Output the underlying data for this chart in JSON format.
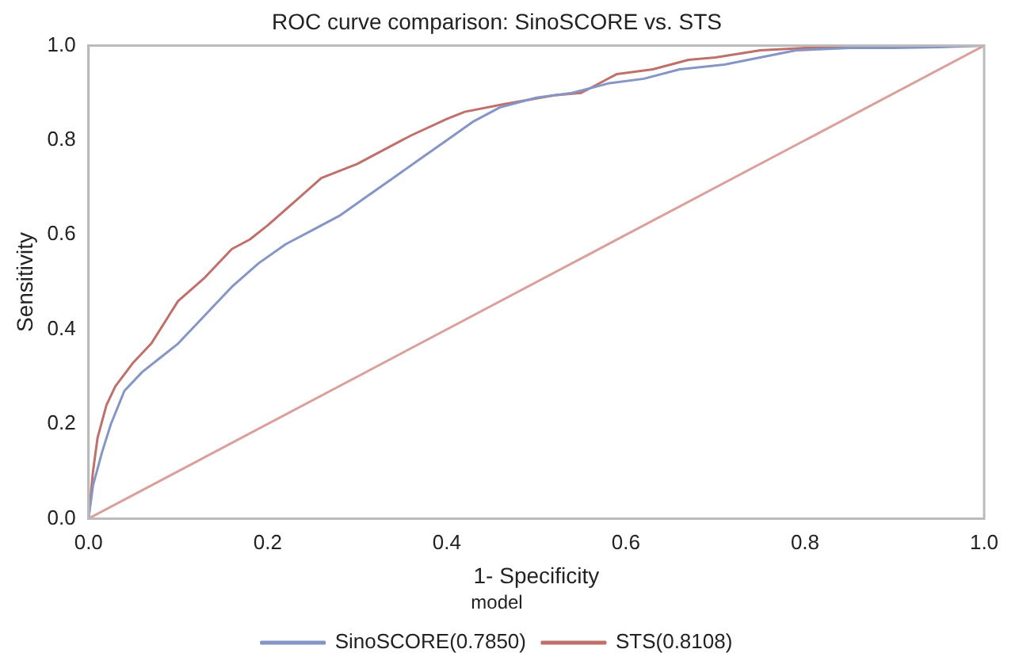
{
  "chart_data": {
    "type": "line",
    "title": "ROC curve comparison: SinoSCORE vs. STS",
    "xlabel": "1- Specificity",
    "ylabel": "Sensitivity",
    "legend_title": "model",
    "legend": "bottom",
    "grid": false,
    "marker": "none",
    "line_style": "solid",
    "xlim": [
      0,
      1
    ],
    "ylim": [
      0,
      1
    ],
    "xticks": [
      {
        "value": 0,
        "label": "0.0"
      },
      0.2,
      0.4,
      0.6,
      0.8,
      {
        "value": 1,
        "label": "1.0"
      }
    ],
    "yticks": [
      {
        "value": 0,
        "label": "0.0"
      },
      0.2,
      0.4,
      0.6,
      0.8,
      {
        "value": 1,
        "label": "1.0"
      }
    ],
    "series": [
      {
        "name": "SinoSCORE(0.7850)",
        "color": "#8596c6",
        "x": [
          0,
          0.005,
          0.015,
          0.025,
          0.04,
          0.06,
          0.08,
          0.1,
          0.13,
          0.16,
          0.19,
          0.22,
          0.25,
          0.28,
          0.31,
          0.34,
          0.37,
          0.4,
          0.43,
          0.46,
          0.5,
          0.54,
          0.58,
          0.62,
          0.66,
          0.71,
          0.75,
          0.79,
          0.85,
          0.9,
          0.95,
          1
        ],
        "values": [
          0,
          0.07,
          0.14,
          0.2,
          0.27,
          0.31,
          0.34,
          0.37,
          0.43,
          0.49,
          0.54,
          0.58,
          0.61,
          0.64,
          0.68,
          0.72,
          0.76,
          0.8,
          0.84,
          0.87,
          0.89,
          0.9,
          0.92,
          0.93,
          0.95,
          0.96,
          0.975,
          0.99,
          0.995,
          0.995,
          0.997,
          1
        ]
      },
      {
        "name": "STS(0.8108)",
        "color": "#c0706a",
        "x": [
          0,
          0.005,
          0.01,
          0.02,
          0.03,
          0.05,
          0.07,
          0.09,
          0.1,
          0.13,
          0.16,
          0.18,
          0.2,
          0.23,
          0.26,
          0.3,
          0.33,
          0.36,
          0.4,
          0.42,
          0.46,
          0.52,
          0.55,
          0.59,
          0.63,
          0.67,
          0.7,
          0.75,
          0.8,
          1
        ],
        "values": [
          0,
          0.1,
          0.17,
          0.24,
          0.28,
          0.33,
          0.37,
          0.43,
          0.46,
          0.51,
          0.57,
          0.59,
          0.62,
          0.67,
          0.72,
          0.75,
          0.78,
          0.81,
          0.845,
          0.86,
          0.875,
          0.895,
          0.9,
          0.94,
          0.95,
          0.97,
          0.975,
          0.99,
          0.995,
          1
        ]
      },
      {
        "color": "#d9a09c",
        "x": [
          0,
          1
        ],
        "values": [
          0,
          1
        ]
      }
    ]
  }
}
